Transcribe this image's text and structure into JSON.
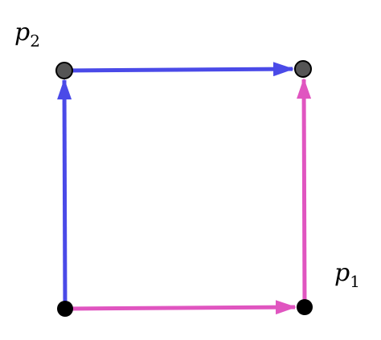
{
  "labels": {
    "p2": {
      "base": "p",
      "sub": "2"
    },
    "p1": {
      "base": "p",
      "sub": "1"
    }
  },
  "colors": {
    "blue": "#4a4ae8",
    "magenta": "#e055c0",
    "node_dark": "#000000",
    "node_grey": "#555555"
  }
}
